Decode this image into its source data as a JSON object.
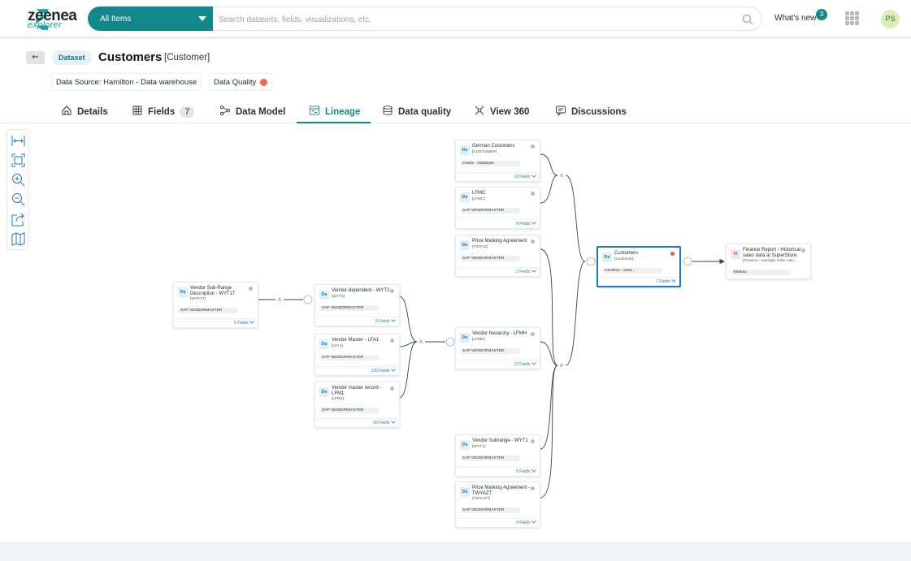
{
  "header": {
    "logo": "zeenea",
    "logo_sub": "explorer",
    "scope": "All Items",
    "search_placeholder": "Search datasets, fields, visualizations, etc.",
    "whats_new": "What's new",
    "whats_new_count": 3,
    "avatar": "PS"
  },
  "page": {
    "back": "⇜",
    "badge": "Dataset",
    "title": "Customers",
    "code": "[Customer]",
    "data_source": "Data Source: Hamilton - Data warehouse",
    "data_quality": "Data Quality"
  },
  "tabs": [
    {
      "label": "Details"
    },
    {
      "label": "Fields",
      "count": 7
    },
    {
      "label": "Data Model"
    },
    {
      "label": "Lineage"
    },
    {
      "label": "Data quality"
    },
    {
      "label": "View 360"
    },
    {
      "label": "Discussions"
    }
  ],
  "active_tab": 3,
  "nodes": [
    {
      "icon": "Ds",
      "name": "German Customers",
      "code": "[CUSTOMER]",
      "source": "Oracle - Database",
      "fields": "10 Fields"
    },
    {
      "icon": "Ds",
      "name": "LFMC",
      "code": "[LFMC]",
      "source": "SAP VENDORMASTER",
      "fields": "9 Fields"
    },
    {
      "icon": "Ds",
      "name": "Price Marking Agreement",
      "code": "[TWYAZ]",
      "source": "SAP VENDORMASTER",
      "fields": "2 Fields"
    },
    {
      "icon": "Ds",
      "name": "Customers",
      "code": "[Customer]",
      "source": "Hamilton - Data...",
      "fields": "7 Fields"
    },
    {
      "icon": "Vi",
      "name": "Finance Report - Historical sales data at SuperStore",
      "code": "[Finance - Average order valu...",
      "source": "Tableau"
    },
    {
      "icon": "Ds",
      "name": "Vendor Sub-Range Description - WYT1T",
      "code": "[WYT1T]",
      "source": "SAP VENDORMASTER",
      "fields": "5 Fields"
    },
    {
      "icon": "Ds",
      "name": "Vendor-dependent - WYT2",
      "code": "[WYT2]",
      "source": "SAP VENDORMASTER",
      "fields": "6 Fields"
    },
    {
      "icon": "Ds",
      "name": "Vendor Master - LFA1",
      "code": "[LFA1]",
      "source": "SAP VENDORMASTER",
      "fields": "120 Fields"
    },
    {
      "icon": "Ds",
      "name": "Vendor master record - LFM1",
      "code": "[LFM1]",
      "source": "SAP VENDORMASTER",
      "fields": "55 Fields"
    },
    {
      "icon": "Ds",
      "name": "Vendor hierarchy - LFMH",
      "code": "[LFMH]",
      "source": "SAP VENDORMASTER",
      "fields": "12 Fields"
    },
    {
      "icon": "Ds",
      "name": "Vendor Subrange - WYT1",
      "code": "[WYT1]",
      "source": "SAP VENDORMASTER",
      "fields": "5 Fields"
    },
    {
      "icon": "Ds",
      "name": "Price Marking Agreement - TWYAZT",
      "code": "[TWYAZT]",
      "source": "SAP VENDORMASTER",
      "fields": "4 Fields"
    }
  ],
  "selected_node": 3
}
